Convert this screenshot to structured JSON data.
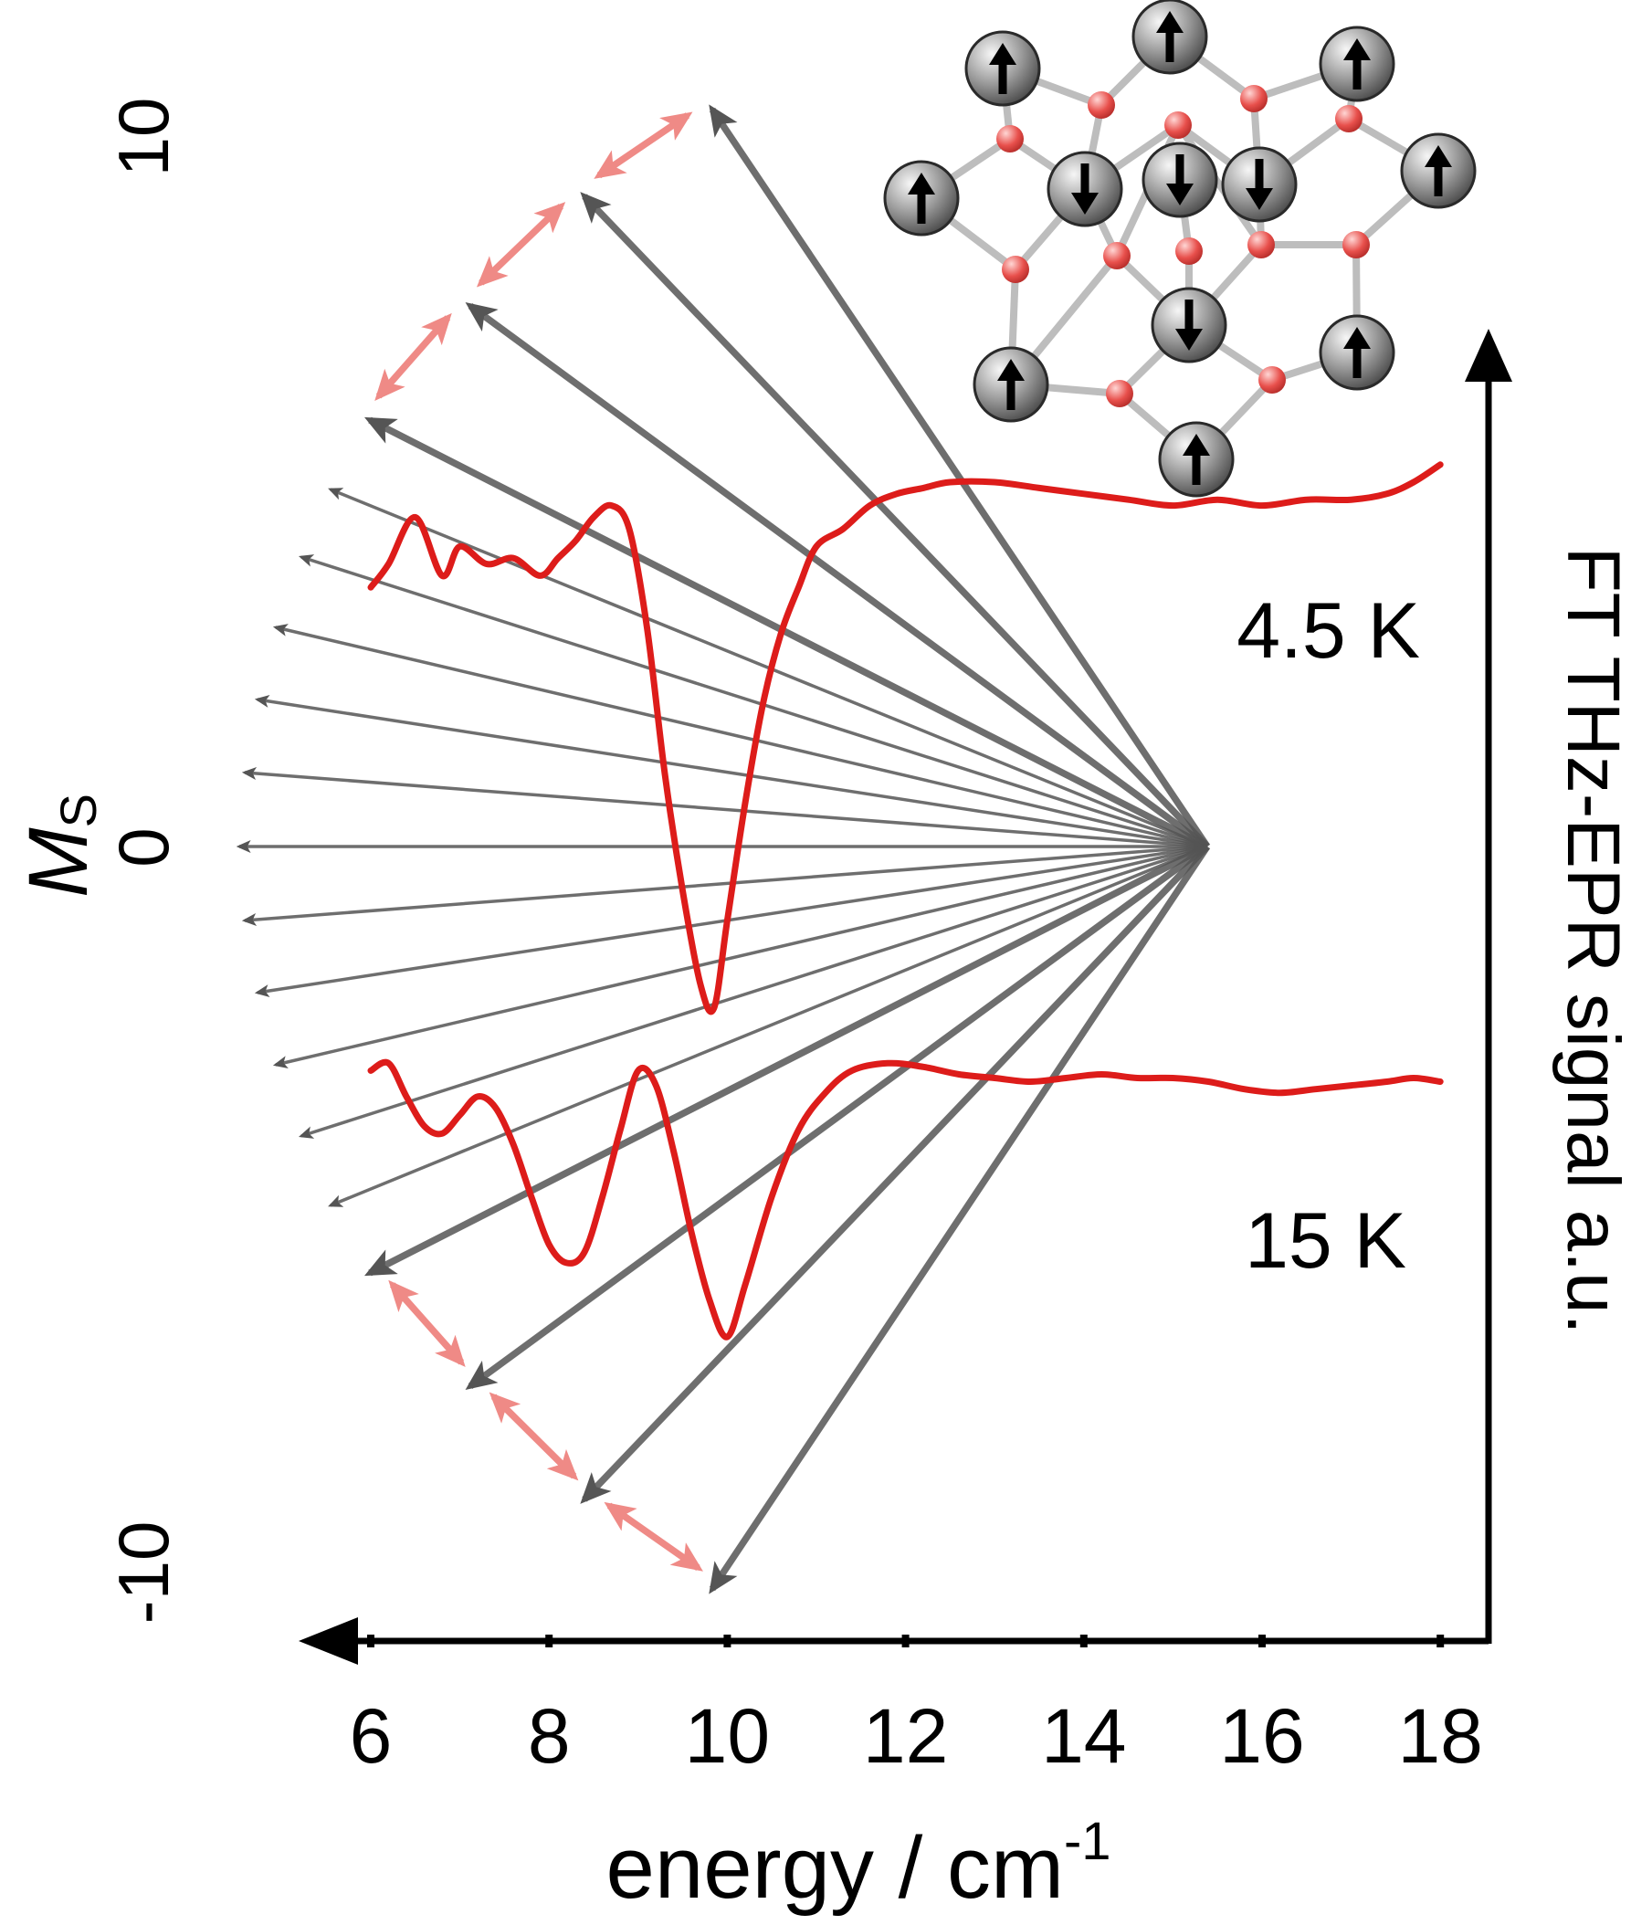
{
  "colors": {
    "axis": "#000000",
    "spectrum": "#dd1c1a",
    "transition_arrow": "#555555",
    "ms_arrow": "#ef8a86",
    "atom_fe": "#8a8a8a",
    "atom_o": "#e8504c",
    "bond": "#bdbdbd"
  },
  "chart_data": {
    "type": "line",
    "xlabel_base": "energy / cm",
    "xlabel_exp": "-1",
    "ylabel": "FT THz-EPR signal a.u.",
    "ms_label": "M",
    "ms_label_sub": "S",
    "ms_ticks": [
      "10",
      "0",
      "-10"
    ],
    "x_ticks": [
      "6",
      "8",
      "10",
      "12",
      "14",
      "16",
      "18"
    ],
    "xlim": [
      5.5,
      18.5
    ],
    "ms_range": [
      -10,
      10
    ],
    "series": [
      {
        "name": "4.5 K",
        "x": [
          6.0,
          6.2,
          6.5,
          6.8,
          7.0,
          7.3,
          7.6,
          7.9,
          8.1,
          8.3,
          8.5,
          8.7,
          8.9,
          9.1,
          9.3,
          9.5,
          9.7,
          9.85,
          10.0,
          10.2,
          10.4,
          10.6,
          10.8,
          11.0,
          11.3,
          11.6,
          11.9,
          12.2,
          12.5,
          13.0,
          13.5,
          14.0,
          14.5,
          15.0,
          15.5,
          16.0,
          16.5,
          17.0,
          17.4,
          17.7,
          18.0
        ],
        "y": [
          0.62,
          0.66,
          0.74,
          0.64,
          0.69,
          0.66,
          0.67,
          0.64,
          0.67,
          0.7,
          0.74,
          0.76,
          0.72,
          0.55,
          0.3,
          0.1,
          -0.06,
          -0.1,
          0.05,
          0.25,
          0.42,
          0.54,
          0.62,
          0.69,
          0.72,
          0.76,
          0.78,
          0.79,
          0.8,
          0.8,
          0.79,
          0.78,
          0.77,
          0.76,
          0.77,
          0.76,
          0.77,
          0.77,
          0.78,
          0.8,
          0.83
        ]
      },
      {
        "name": "15 K",
        "x": [
          6.0,
          6.2,
          6.4,
          6.6,
          6.8,
          7.0,
          7.2,
          7.4,
          7.6,
          7.8,
          8.0,
          8.2,
          8.4,
          8.6,
          8.8,
          9.0,
          9.2,
          9.4,
          9.6,
          9.8,
          10.0,
          10.2,
          10.5,
          10.8,
          11.1,
          11.4,
          11.8,
          12.2,
          12.6,
          13.0,
          13.4,
          13.8,
          14.2,
          14.6,
          15.0,
          15.4,
          15.8,
          16.2,
          16.6,
          17.0,
          17.4,
          17.7,
          18.0
        ],
        "y": [
          0.92,
          0.94,
          0.85,
          0.77,
          0.75,
          0.8,
          0.85,
          0.82,
          0.72,
          0.58,
          0.45,
          0.4,
          0.43,
          0.58,
          0.76,
          0.92,
          0.88,
          0.7,
          0.48,
          0.3,
          0.2,
          0.34,
          0.58,
          0.76,
          0.86,
          0.92,
          0.94,
          0.93,
          0.91,
          0.9,
          0.89,
          0.9,
          0.91,
          0.9,
          0.9,
          0.89,
          0.87,
          0.86,
          0.87,
          0.88,
          0.89,
          0.9,
          0.89
        ]
      }
    ]
  }
}
